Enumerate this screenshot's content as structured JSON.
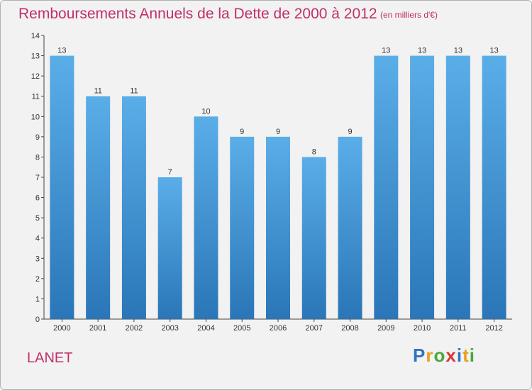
{
  "header": {
    "title": "Remboursements Annuels de la Dette de 2000 à 2012",
    "unit": "(en milliers d'€)"
  },
  "commune": "LANET",
  "logo": {
    "text": "Proxiti"
  },
  "colors": {
    "bar_top": "#5aaee8",
    "bar_bottom": "#2a76b8",
    "title": "#c0306a"
  },
  "chart_data": {
    "type": "bar",
    "title": "Remboursements Annuels de la Dette de 2000 à 2012",
    "categories": [
      "2000",
      "2001",
      "2002",
      "2003",
      "2004",
      "2005",
      "2006",
      "2007",
      "2008",
      "2009",
      "2010",
      "2011",
      "2012"
    ],
    "values": [
      13,
      11,
      11,
      7,
      10,
      9,
      9,
      8,
      9,
      13,
      13,
      13,
      13
    ],
    "ylim": [
      0,
      14
    ],
    "yticks": [
      0,
      1,
      2,
      3,
      4,
      5,
      6,
      7,
      8,
      9,
      10,
      11,
      12,
      13,
      14
    ],
    "grid": false
  }
}
